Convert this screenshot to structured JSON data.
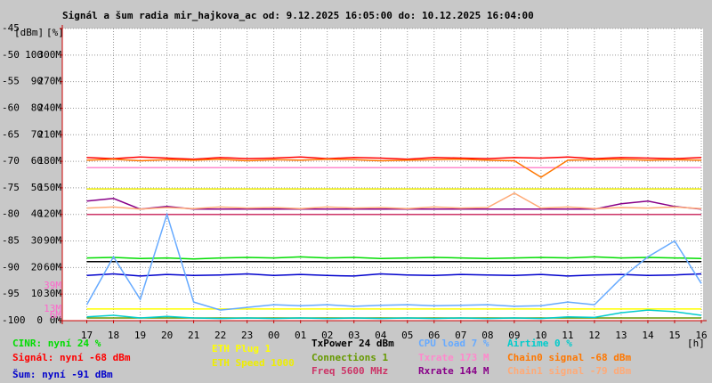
{
  "chart_data": {
    "type": "line",
    "title": "Signál a šum radia mir_hajkova_ac od: 9.12.2025 16:05:00 do: 10.12.2025 16:04:00",
    "y_unit_label": "[dBm]",
    "y2_unit_label": "[%]",
    "x_unit_label": "[h]",
    "xlim": [
      16.0833,
      40.0667
    ],
    "xticks": [
      17,
      18,
      19,
      20,
      21,
      22,
      23,
      {
        "value": 24,
        "label": "00"
      },
      {
        "value": 25,
        "label": "01"
      },
      {
        "value": 26,
        "label": "02"
      },
      {
        "value": 27,
        "label": "03"
      },
      {
        "value": 28,
        "label": "04"
      },
      {
        "value": 29,
        "label": "05"
      },
      {
        "value": 30,
        "label": "06"
      },
      {
        "value": 31,
        "label": "07"
      },
      {
        "value": 32,
        "label": "08"
      },
      {
        "value": 33,
        "label": "09"
      },
      {
        "value": 34,
        "label": "10"
      },
      {
        "value": 35,
        "label": "11"
      },
      {
        "value": 36,
        "label": "12"
      },
      {
        "value": 37,
        "label": "13"
      },
      {
        "value": 38,
        "label": "14"
      },
      {
        "value": 39,
        "label": "15"
      },
      {
        "value": 40,
        "label": "16"
      }
    ],
    "ylim": [
      -100,
      -45
    ],
    "yticks": [
      -100,
      -95,
      -90,
      -85,
      -80,
      -75,
      -70,
      -65,
      -60,
      -55,
      -50,
      -45
    ],
    "y2lim": [
      0,
      110
    ],
    "y2ticks": [
      0,
      10,
      20,
      30,
      40,
      50,
      60,
      70,
      80,
      90,
      100
    ],
    "y3lim": [
      0,
      330
    ],
    "y3ticks": [
      {
        "value": 0,
        "label": "0M"
      },
      {
        "value": 30,
        "label": "30M"
      },
      {
        "value": 60,
        "label": "60M"
      },
      {
        "value": 90,
        "label": "90M"
      },
      {
        "value": 120,
        "label": "120M"
      },
      {
        "value": 150,
        "label": "150M"
      },
      {
        "value": 180,
        "label": "180M"
      },
      {
        "value": 210,
        "label": "210M"
      },
      {
        "value": 240,
        "label": "240M"
      },
      {
        "value": 270,
        "label": "270M"
      },
      {
        "value": 300,
        "label": "300M"
      }
    ],
    "annotations": [
      {
        "text": "39M",
        "value": 39
      },
      {
        "text": "13M",
        "value": 13
      },
      {
        "text": "6M",
        "value": 6
      }
    ],
    "grid": true,
    "x": [
      17,
      18,
      19,
      20,
      21,
      22,
      23,
      24,
      25,
      26,
      27,
      28,
      29,
      30,
      31,
      32,
      33,
      34,
      35,
      36,
      37,
      38,
      39,
      40
    ],
    "series": [
      {
        "name": "CINR: nyní 24 %",
        "color": "#00dd00",
        "values": [
          -88.2,
          -88.1,
          -88.3,
          -88.2,
          -88.4,
          -88.2,
          -88.1,
          -88.2,
          -88.0,
          -88.2,
          -88.1,
          -88.3,
          -88.2,
          -88.1,
          -88.2,
          -88.3,
          -88.2,
          -88.1,
          -88.2,
          -88.0,
          -88.2,
          -88.1,
          -88.2,
          -88.3
        ]
      },
      {
        "name": "Signál: nyní -68 dBm",
        "color": "#ff0000",
        "values": [
          -69.3,
          -69.5,
          -69.2,
          -69.4,
          -69.6,
          -69.3,
          -69.5,
          -69.4,
          -69.2,
          -69.5,
          -69.3,
          -69.4,
          -69.6,
          -69.3,
          -69.4,
          -69.5,
          -69.3,
          -69.4,
          -69.2,
          -69.5,
          -69.3,
          -69.4,
          -69.5,
          -69.3
        ]
      },
      {
        "name": "Šum: nyní -91 dBm",
        "color": "#0000cc",
        "values": [
          -91.5,
          -91.2,
          -91.6,
          -91.3,
          -91.5,
          -91.4,
          -91.2,
          -91.5,
          -91.3,
          -91.5,
          -91.6,
          -91.2,
          -91.4,
          -91.5,
          -91.3,
          -91.4,
          -91.5,
          -91.3,
          -91.6,
          -91.4,
          -91.3,
          -91.5,
          -91.4,
          -91.2
        ]
      },
      {
        "name": "ETH Plug 1",
        "color": "#ffff00",
        "values": [
          -97.8,
          -97.8,
          -97.8,
          -97.8,
          -97.8,
          -97.8,
          -97.8,
          -97.8,
          -97.8,
          -97.8,
          -97.8,
          -97.8,
          -97.8,
          -97.8,
          -97.8,
          -97.8,
          -97.8,
          -97.8,
          -97.8,
          -97.8,
          -97.8,
          -97.8,
          -97.8,
          -97.8
        ]
      },
      {
        "name": "ETH Speed 1000",
        "color": "#eeee00",
        "values": [
          -75.2,
          -75.2,
          -75.2,
          -75.2,
          -75.2,
          -75.2,
          -75.2,
          -75.2,
          -75.2,
          -75.2,
          -75.2,
          -75.2,
          -75.2,
          -75.2,
          -75.2,
          -75.2,
          -75.2,
          -75.2,
          -75.2,
          -75.2,
          -75.2,
          -75.2,
          -75.2,
          -75.2
        ]
      },
      {
        "name": "TxPower 24 dBm",
        "color": "#000000",
        "values": [
          -88.9,
          -88.9,
          -88.9,
          -88.9,
          -88.9,
          -88.9,
          -88.9,
          -88.9,
          -88.9,
          -88.9,
          -88.9,
          -88.9,
          -88.9,
          -88.9,
          -88.9,
          -88.9,
          -88.9,
          -88.9,
          -88.9,
          -88.9,
          -88.9,
          -88.9,
          -88.9,
          -88.9
        ]
      },
      {
        "name": "Connections 1",
        "color": "#669900",
        "values": [
          -99.5,
          -99.5,
          -99.5,
          -99.5,
          -99.5,
          -99.5,
          -99.5,
          -99.5,
          -99.5,
          -99.5,
          -99.5,
          -99.5,
          -99.5,
          -99.5,
          -99.5,
          -99.5,
          -99.5,
          -99.5,
          -99.5,
          -99.5,
          -99.5,
          -99.5,
          -99.5,
          -99.5
        ]
      },
      {
        "name": "Freq 5600 MHz",
        "color": "#cc3366",
        "values": [
          -80.0,
          -80.0,
          -80.0,
          -80.0,
          -80.0,
          -80.0,
          -80.0,
          -80.0,
          -80.0,
          -80.0,
          -80.0,
          -80.0,
          -80.0,
          -80.0,
          -80.0,
          -80.0,
          -80.0,
          -80.0,
          -80.0,
          -80.0,
          -80.0,
          -80.0,
          -80.0,
          -80.0
        ]
      },
      {
        "name": "CPU load 7 %",
        "color": "#66aaff",
        "values": [
          -97.0,
          -88.0,
          -96.0,
          -80.0,
          -96.5,
          -98.0,
          -97.5,
          -97.0,
          -97.2,
          -97.0,
          -97.3,
          -97.1,
          -97.0,
          -97.2,
          -97.1,
          -97.0,
          -97.3,
          -97.2,
          -96.5,
          -97.0,
          -92.0,
          -88.0,
          -85.0,
          -93.0
        ]
      },
      {
        "name": "Txrate 173 M",
        "color": "#ff88cc",
        "values": [
          -71.2,
          -71.2,
          -71.2,
          -71.2,
          -71.2,
          -71.2,
          -71.2,
          -71.2,
          -71.2,
          -71.2,
          -71.2,
          -71.2,
          -71.2,
          -71.2,
          -71.2,
          -71.2,
          -71.2,
          -71.2,
          -71.2,
          -71.2,
          -71.2,
          -71.2,
          -71.2,
          -71.2
        ]
      },
      {
        "name": "Rxrate 144 M",
        "color": "#880088",
        "values": [
          -77.5,
          -77.0,
          -79.0,
          -78.5,
          -79.0,
          -79.0,
          -79.0,
          -79.0,
          -79.0,
          -79.0,
          -79.0,
          -79.0,
          -79.0,
          -79.0,
          -79.0,
          -79.0,
          -79.0,
          -79.0,
          -79.0,
          -79.0,
          -78.0,
          -77.5,
          -78.5,
          -79.0
        ]
      },
      {
        "name": "Airtime 0 %",
        "color": "#00cccc",
        "values": [
          -99.3,
          -99.0,
          -99.5,
          -99.2,
          -99.5,
          -99.6,
          -99.5,
          -99.6,
          -99.5,
          -99.6,
          -99.5,
          -99.6,
          -99.5,
          -99.6,
          -99.5,
          -99.6,
          -99.5,
          -99.6,
          -99.3,
          -99.4,
          -98.5,
          -98.0,
          -98.3,
          -99.0
        ]
      },
      {
        "name": "Chain0 signal -68 dBm",
        "color": "#ff7700",
        "values": [
          -69.8,
          -69.6,
          -69.9,
          -69.7,
          -69.8,
          -69.6,
          -69.9,
          -69.7,
          -69.8,
          -69.6,
          -69.7,
          -69.9,
          -69.8,
          -69.7,
          -69.6,
          -69.8,
          -69.9,
          -73.0,
          -69.8,
          -69.7,
          -69.6,
          -69.8,
          -69.7,
          -69.8
        ]
      },
      {
        "name": "Chain1 signal -79 dBm",
        "color": "#ffaa77",
        "values": [
          -78.8,
          -78.6,
          -79.0,
          -78.7,
          -78.9,
          -78.6,
          -78.8,
          -78.7,
          -78.9,
          -78.6,
          -78.8,
          -78.7,
          -78.9,
          -78.6,
          -78.8,
          -78.7,
          -76.0,
          -78.8,
          -78.6,
          -78.9,
          -78.7,
          -78.8,
          -78.6,
          -78.9
        ]
      }
    ]
  }
}
